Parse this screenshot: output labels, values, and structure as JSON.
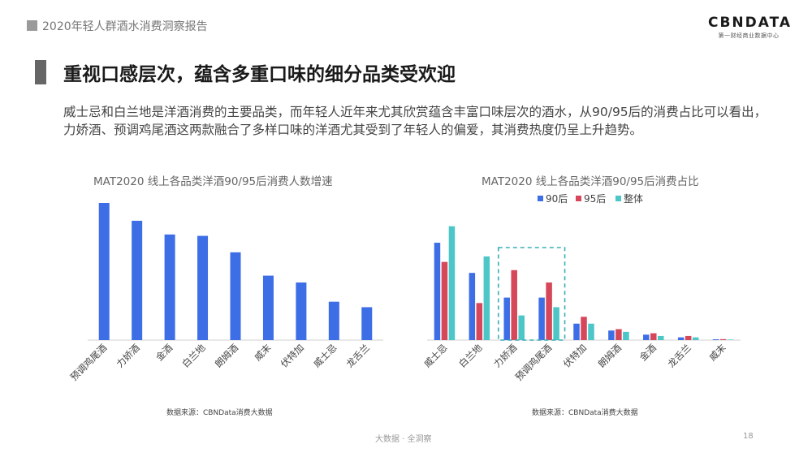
{
  "header": {
    "report_title": "2020年轻人群酒水消费洞察报告",
    "logo_text": "CBNDATA",
    "logo_subtext": "第一财经商业数据中心"
  },
  "headline": "重视口感层次，蕴含多重口味的细分品类受欢迎",
  "description": "威士忌和白兰地是洋酒消费的主要品类，而年轻人近年来尤其欣赏蕴含丰富口味层次的酒水，从90/95后的消费占比可以看出，力娇酒、预调鸡尾酒这两款融合了多样口味的洋酒尤其受到了年轻人的偏爱，其消费热度仍呈上升趋势。",
  "footer": {
    "text": "大数据 · 全洞察",
    "page": "18"
  },
  "colors": {
    "blue": "#3d6ee6",
    "red": "#d6475a",
    "teal": "#4cc6c6",
    "highlight_box": "#3aaeb5"
  },
  "chart_data": [
    {
      "type": "bar",
      "title": "MAT2020 线上各品类洋酒90/95后消费人数增速",
      "categories": [
        "预调鸡尾酒",
        "力娇酒",
        "金酒",
        "白兰地",
        "朗姆酒",
        "威末",
        "伏特加",
        "威士忌",
        "龙舌兰"
      ],
      "values": [
        100,
        87,
        77,
        76,
        64,
        47,
        42,
        28,
        24
      ],
      "ylim": [
        0,
        100
      ],
      "source": "数据来源：CBNData消费大数据"
    },
    {
      "type": "bar",
      "title": "MAT2020 线上各品类洋酒90/95后消费占比",
      "categories": [
        "威士忌",
        "白兰地",
        "力娇酒",
        "预调鸡尾酒",
        "伏特加",
        "朗姆酒",
        "金酒",
        "龙舌兰",
        "威末"
      ],
      "series": [
        {
          "name": "90后",
          "values": [
            71,
            49,
            31,
            31,
            12,
            7,
            4,
            2,
            0.6
          ]
        },
        {
          "name": "95后",
          "values": [
            57,
            27,
            51,
            42,
            17,
            8,
            5,
            3,
            0.7
          ]
        },
        {
          "name": "整体",
          "values": [
            83,
            61,
            18,
            24,
            12,
            6,
            3,
            2,
            0.4
          ]
        }
      ],
      "highlighted_categories": [
        "力娇酒",
        "预调鸡尾酒"
      ],
      "ylim": [
        0,
        100
      ],
      "legend_position": "top",
      "source": "数据来源：CBNData消费大数据"
    }
  ]
}
